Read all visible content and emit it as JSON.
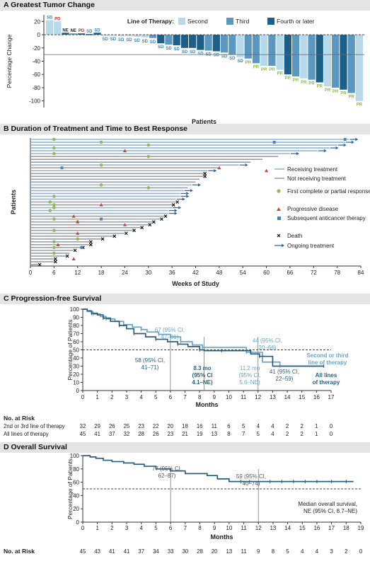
{
  "colors": {
    "second": "#b7d9ea",
    "third": "#5c97bf",
    "fourth": "#1d5f86",
    "pr_label": "#8bba4a",
    "sd_label": "#3a86b8",
    "pd_label": "#b5352b",
    "ne_label": "#222222",
    "dot_green": "#93b75a",
    "tri_red": "#b94a3c",
    "sq_blue": "#4f80b8",
    "arrow": "#2366a6",
    "km_top": "#6aa5c7",
    "km_bottom": "#2b5f7d"
  },
  "panels": {
    "a": {
      "title": "A  Greatest Tumor Change"
    },
    "b": {
      "title": "B  Duration of Treatment and Time to Best Response"
    },
    "c": {
      "title": "C  Progression-free Survival"
    },
    "d": {
      "title": "D  Overall Survival"
    }
  },
  "chart_data": [
    {
      "id": "waterfall",
      "type": "bar",
      "title": "Greatest Tumor Change",
      "xlabel": "Patients",
      "ylabel": "Percentage Change",
      "ylim": [
        -110,
        30
      ],
      "yticks": [
        20,
        0,
        -20,
        -40,
        -60,
        -80,
        -100
      ],
      "reference_lines": [
        0,
        -30
      ],
      "legend": {
        "title": "Line of Therapy:",
        "entries": [
          "Second",
          "Third",
          "Fourth or later"
        ]
      },
      "values": [
        22,
        20,
        3,
        2,
        2,
        1,
        3,
        -1,
        -1,
        -2,
        -2,
        -3,
        -4,
        -5,
        -13,
        -15,
        -16,
        -20,
        -20,
        -23,
        -24,
        -25,
        -27,
        -30,
        -34,
        -36,
        -43,
        -47,
        -47,
        -53,
        -60,
        -63,
        -66,
        -68,
        -72,
        -78,
        -80,
        -83,
        -88,
        -100
      ],
      "line": [
        "second",
        "second",
        "fourth",
        "third",
        "fourth",
        "fourth",
        "fourth",
        "second",
        "second",
        "second",
        "second",
        "second",
        "second",
        "third",
        "fourth",
        "third",
        "fourth",
        "fourth",
        "fourth",
        "fourth",
        "third",
        "fourth",
        "third",
        "third",
        "second",
        "third",
        "third",
        "second",
        "third",
        "second",
        "fourth",
        "third",
        "second",
        "third",
        "fourth",
        "second",
        "third",
        "fourth",
        "third",
        "second"
      ],
      "labels": [
        "SD",
        "PD",
        "NE",
        "NE",
        "PD",
        "SD",
        "SD",
        "SD",
        "SD",
        "SD",
        "SD",
        "SD",
        "SD",
        "SD",
        "SD",
        "SD",
        "SD",
        "SD",
        "SD",
        "SD",
        "SD",
        "SD",
        "SD",
        "SD",
        "SD",
        "PR",
        "PR",
        "PR",
        "PR",
        "PR",
        "PR",
        "PR",
        "PR",
        "PR",
        "PR",
        "PR",
        "PR",
        "PR",
        "PR",
        "PR"
      ]
    },
    {
      "id": "swimmer",
      "type": "line",
      "title": "Duration of Treatment and Time to Best Response",
      "xlabel": "Weeks of Study",
      "ylabel": "Patients",
      "xlim": [
        0,
        84
      ],
      "xticks": [
        0,
        6,
        12,
        18,
        24,
        30,
        36,
        42,
        48,
        54,
        60,
        66,
        72,
        78,
        84
      ],
      "legend_entries": [
        "Receiving treatment",
        "Not receiving treatment",
        "First complete or partial response",
        "Progressive disease",
        "Subsequent anticancer therapy",
        "Death",
        "Ongoing treatment"
      ],
      "durations": [
        81,
        80,
        78,
        76,
        73,
        66,
        63,
        59,
        56,
        53,
        48,
        45,
        44,
        44,
        43,
        42,
        41,
        40,
        39,
        38,
        38,
        37,
        37,
        36,
        36,
        35,
        35,
        34,
        33,
        31,
        30,
        28,
        26,
        24,
        21,
        18,
        15,
        15,
        13,
        11,
        10,
        9,
        6,
        6,
        2
      ],
      "ongoing": [
        1,
        1,
        1,
        1,
        1,
        1,
        0,
        0,
        0,
        1,
        0,
        1,
        0,
        0,
        0,
        0,
        1,
        0,
        1,
        1,
        1,
        1,
        0,
        0,
        1,
        1,
        1,
        0,
        0,
        0,
        0,
        0,
        0,
        0,
        0,
        0,
        0,
        0,
        0,
        0,
        0,
        0,
        0,
        0,
        0
      ],
      "death": [
        0,
        0,
        0,
        0,
        0,
        0,
        0,
        0,
        0,
        0,
        0,
        0,
        1,
        1,
        0,
        0,
        0,
        0,
        0,
        0,
        0,
        0,
        1,
        1,
        0,
        0,
        0,
        1,
        1,
        1,
        1,
        1,
        1,
        1,
        1,
        1,
        1,
        1,
        1,
        1,
        0,
        1,
        1,
        1,
        1
      ],
      "response": [
        6,
        18,
        30,
        6,
        null,
        6,
        30,
        null,
        null,
        18,
        null,
        null,
        null,
        null,
        null,
        null,
        18,
        30,
        null,
        null,
        6,
        null,
        5,
        6,
        6,
        5,
        null,
        null,
        6,
        12,
        null,
        null,
        6,
        null,
        null,
        12,
        6,
        null,
        6,
        null,
        6,
        null,
        null,
        null,
        null
      ],
      "progressive": [
        null,
        null,
        null,
        null,
        24,
        null,
        null,
        null,
        null,
        null,
        48,
        60,
        null,
        null,
        null,
        null,
        null,
        null,
        null,
        null,
        null,
        null,
        null,
        18,
        null,
        null,
        null,
        11,
        null,
        12,
        24,
        null,
        null,
        12,
        null,
        null,
        null,
        7,
        null,
        null,
        null,
        null,
        11,
        null,
        null
      ],
      "subsequent": [
        80,
        62,
        null,
        null,
        null,
        null,
        null,
        null,
        null,
        null,
        8,
        null,
        null,
        null,
        null,
        null,
        null,
        null,
        null,
        null,
        null,
        null,
        null,
        null,
        null,
        null,
        null,
        null,
        18,
        null,
        null,
        null,
        null,
        null,
        null,
        null,
        null,
        null,
        13,
        null,
        null,
        null,
        null,
        null,
        null
      ]
    },
    {
      "id": "pfs",
      "type": "line",
      "title": "Progression-free Survival",
      "xlabel": "Months",
      "ylabel": "Percentage of Patients",
      "xlim": [
        0,
        17
      ],
      "ylim": [
        0,
        100
      ],
      "series": [
        {
          "name": "Second or third line of therapy",
          "x": [
            0,
            0.3,
            0.7,
            1.2,
            1.6,
            2.2,
            2.8,
            3.4,
            4.0,
            4.4,
            5.2,
            6.0,
            6.7,
            7.5,
            8.2,
            9.4,
            11.2,
            12.3,
            13.5,
            16.5
          ],
          "y": [
            100,
            97,
            94,
            91,
            88,
            85,
            81,
            78,
            75,
            72,
            69,
            66,
            60,
            56,
            53,
            53,
            47,
            35,
            30,
            30
          ]
        },
        {
          "name": "All lines of therapy",
          "x": [
            0,
            0.3,
            0.6,
            1.0,
            1.4,
            1.9,
            2.5,
            3.0,
            3.5,
            4.3,
            5.0,
            5.8,
            6.5,
            7.2,
            8.0,
            8.3,
            9.5,
            11.5,
            12.1,
            13.0,
            16.5
          ],
          "y": [
            100,
            98,
            95,
            93,
            89,
            85,
            80,
            76,
            70,
            66,
            63,
            60,
            57,
            54,
            50,
            49,
            49,
            45,
            42,
            30,
            30
          ]
        }
      ],
      "annotations": [
        "67 (95% CI,",
        "47–81)",
        "58 (95% CI,",
        "41–71)",
        "8.3 mo",
        "(95% CI",
        "4.1–NE)",
        "44 (95% CI,",
        "20–66)",
        "11.2 mo",
        "(95% CI,",
        "5.6–NE)",
        "41 (95% CI,",
        "22–59)"
      ],
      "series_labels": [
        "Second or third",
        "line of therapy",
        "All lines",
        "of therapy"
      ],
      "risk_title": "No. at Risk",
      "risk_rows": [
        {
          "label": "2nd or 3rd line of therapy",
          "values": [
            "32",
            "29",
            "26",
            "25",
            "23",
            "22",
            "20",
            "18",
            "16",
            "11",
            "6",
            "5",
            "4",
            "4",
            "2",
            "2",
            "1",
            "0"
          ]
        },
        {
          "label": "All lines of therapy",
          "values": [
            "45",
            "41",
            "37",
            "32",
            "28",
            "26",
            "23",
            "21",
            "19",
            "13",
            "8",
            "7",
            "5",
            "4",
            "2",
            "2",
            "1",
            "0"
          ]
        }
      ]
    },
    {
      "id": "os",
      "type": "line",
      "title": "Overall Survival",
      "xlabel": "Months",
      "ylabel": "Percentage of Patients",
      "xlim": [
        0,
        19
      ],
      "ylim": [
        0,
        100
      ],
      "series": [
        {
          "name": "Overall survival",
          "x": [
            0,
            0.5,
            0.9,
            1.4,
            2.0,
            2.8,
            3.5,
            4.2,
            5.0,
            6.0,
            7.0,
            8.5,
            9.2,
            10.0,
            18.5
          ],
          "y": [
            100,
            98,
            96,
            93,
            91,
            89,
            87,
            84,
            80,
            77,
            73,
            70,
            65,
            61,
            61
          ]
        }
      ],
      "annotations": [
        "77 (95% CI,",
        "62–87)",
        "59 (95% CI,",
        "40–74)",
        "Median overall survival,",
        "NE (95% CI, 8.7–NE)"
      ],
      "risk_title": "No. at Risk",
      "risk_values": [
        "45",
        "43",
        "41",
        "41",
        "37",
        "34",
        "33",
        "30",
        "28",
        "20",
        "13",
        "11",
        "9",
        "8",
        "5",
        "4",
        "4",
        "3",
        "2",
        "0"
      ]
    }
  ]
}
